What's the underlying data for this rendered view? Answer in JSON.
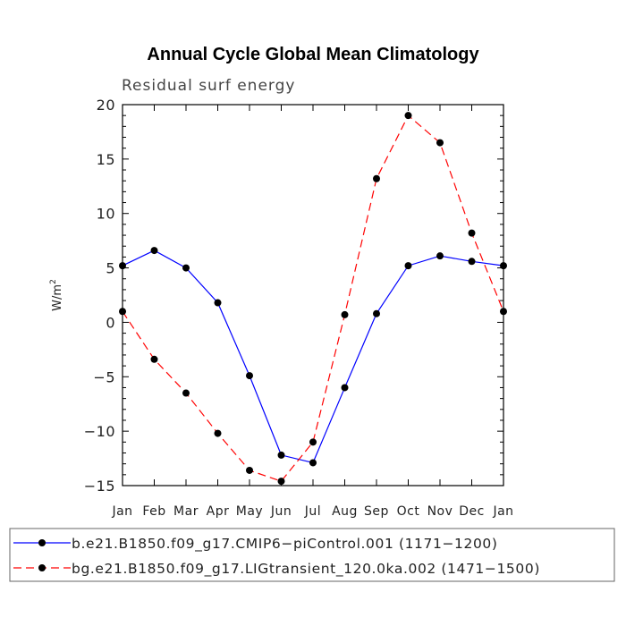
{
  "chart_data": {
    "type": "line",
    "title": "Annual Cycle Global Mean Climatology",
    "subtitle": "Residual surf energy",
    "ylabel": "W/m",
    "ylabel_superscript": "2",
    "xlabel": "",
    "categories": [
      "Jan",
      "Feb",
      "Mar",
      "Apr",
      "May",
      "Jun",
      "Jul",
      "Aug",
      "Sep",
      "Oct",
      "Nov",
      "Dec",
      "Jan"
    ],
    "ylim": [
      -15,
      20
    ],
    "yticks": [
      -15,
      -10,
      -5,
      0,
      5,
      10,
      15,
      20
    ],
    "ytick_labels": [
      "−15",
      "−10",
      "−5",
      "0",
      "5",
      "10",
      "15",
      "20"
    ],
    "grid": false,
    "legend_position": "bottom",
    "series": [
      {
        "name": "b.e21.B1850.f09_g17.CMIP6−piControl.001 (1171−1200)",
        "color": "#0000ff",
        "dash": "solid",
        "marker": "filled-circle",
        "values": [
          5.2,
          6.6,
          5.0,
          1.8,
          -4.9,
          -12.2,
          -12.9,
          -6.0,
          0.8,
          5.2,
          6.1,
          5.6,
          5.2
        ]
      },
      {
        "name": "bg.e21.B1850.f09_g17.LIGtransient_120.0ka.002 (1471−1500)",
        "color": "#ff0000",
        "dash": "dashed",
        "marker": "filled-circle",
        "values": [
          1.0,
          -3.4,
          -6.5,
          -10.2,
          -13.6,
          -14.6,
          -11.0,
          0.7,
          13.2,
          19.0,
          16.5,
          8.2,
          1.0
        ]
      }
    ]
  }
}
